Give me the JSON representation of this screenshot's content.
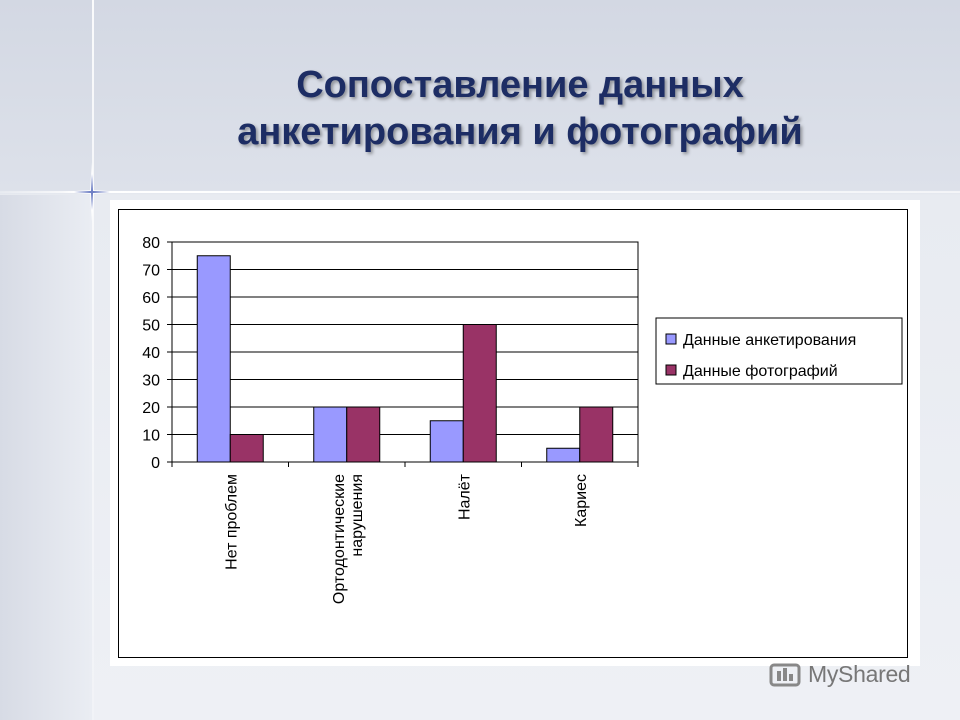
{
  "slide": {
    "title_line1": "Сопоставление данных",
    "title_line2": "анкетирования и фотографий",
    "watermark": "MyShared"
  },
  "colors": {
    "series1": "#9999ff",
    "series2": "#993366",
    "title": "#1d2d64"
  },
  "chart_data": {
    "type": "bar",
    "categories": [
      "Нет проблем",
      "Ортодонтические нарушения",
      "Налёт",
      "Кариес"
    ],
    "category_lines": [
      [
        "Нет проблем"
      ],
      [
        "Ортодонтические",
        "нарушения"
      ],
      [
        "Налёт"
      ],
      [
        "Кариес"
      ]
    ],
    "series": [
      {
        "name": "Данные анкетирования",
        "values": [
          75,
          20,
          15,
          5
        ],
        "color": "#9999ff"
      },
      {
        "name": "Данные фотографий",
        "values": [
          10,
          20,
          50,
          20
        ],
        "color": "#993366"
      }
    ],
    "ylim": [
      0,
      80
    ],
    "yticks": [
      0,
      10,
      20,
      30,
      40,
      50,
      60,
      70,
      80
    ],
    "grid": true,
    "legend": "right"
  }
}
